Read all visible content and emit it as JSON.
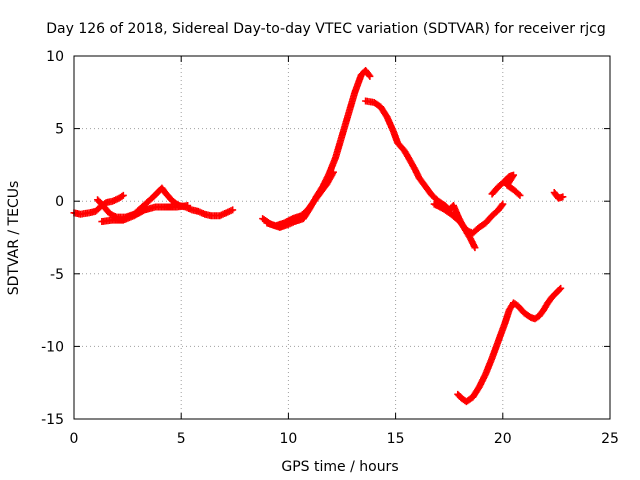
{
  "chart_data": {
    "type": "scatter",
    "title": "Day 126 of 2018, Sidereal Day-to-day VTEC variation (SDTVAR) for receiver rjcg",
    "xlabel": "GPS time / hours",
    "ylabel": "SDTVAR / TECUs",
    "xlim": [
      0,
      25
    ],
    "ylim": [
      -15,
      10
    ],
    "xticks": [
      0,
      5,
      10,
      15,
      20,
      25
    ],
    "yticks": [
      -15,
      -10,
      -5,
      0,
      5,
      10
    ],
    "xtick_labels": [
      "0",
      "5",
      "10",
      "15",
      "20",
      "25"
    ],
    "ytick_labels": [
      "-15",
      "-10",
      "-5",
      "0",
      "5",
      "10"
    ],
    "grid": true,
    "marker": "plus",
    "series_color": "#ff0000",
    "series": [
      {
        "name": "segment-1",
        "points": [
          [
            0.0,
            -0.8
          ],
          [
            0.3,
            -0.9
          ],
          [
            0.7,
            -0.8
          ],
          [
            1.0,
            -0.7
          ],
          [
            1.3,
            -0.3
          ],
          [
            1.5,
            -0.1
          ],
          [
            1.8,
            0.0
          ],
          [
            2.1,
            0.2
          ],
          [
            2.3,
            0.4
          ]
        ]
      },
      {
        "name": "segment-2",
        "points": [
          [
            1.1,
            0.1
          ],
          [
            1.4,
            -0.4
          ],
          [
            1.7,
            -0.9
          ],
          [
            2.0,
            -1.1
          ],
          [
            2.4,
            -1.1
          ],
          [
            2.8,
            -0.9
          ],
          [
            3.1,
            -0.5
          ],
          [
            3.4,
            -0.1
          ],
          [
            3.7,
            0.3
          ],
          [
            3.9,
            0.6
          ],
          [
            4.1,
            0.9
          ],
          [
            4.3,
            0.5
          ],
          [
            4.6,
            0.0
          ],
          [
            4.9,
            -0.3
          ],
          [
            5.2,
            -0.4
          ],
          [
            5.5,
            -0.6
          ],
          [
            5.8,
            -0.7
          ],
          [
            6.1,
            -0.9
          ],
          [
            6.4,
            -1.0
          ],
          [
            6.8,
            -1.0
          ],
          [
            7.1,
            -0.8
          ],
          [
            7.4,
            -0.6
          ]
        ]
      },
      {
        "name": "segment-3",
        "points": [
          [
            1.3,
            -1.4
          ],
          [
            1.8,
            -1.3
          ],
          [
            2.3,
            -1.3
          ],
          [
            2.8,
            -1.0
          ],
          [
            3.3,
            -0.6
          ],
          [
            3.8,
            -0.4
          ],
          [
            4.3,
            -0.4
          ],
          [
            4.8,
            -0.4
          ],
          [
            5.3,
            -0.3
          ]
        ]
      },
      {
        "name": "segment-4",
        "points": [
          [
            8.8,
            -1.2
          ],
          [
            9.2,
            -1.6
          ],
          [
            9.6,
            -1.8
          ],
          [
            10.0,
            -1.6
          ],
          [
            10.3,
            -1.4
          ],
          [
            10.7,
            -1.2
          ],
          [
            11.0,
            -0.5
          ],
          [
            11.3,
            0.3
          ],
          [
            11.6,
            1.0
          ],
          [
            11.9,
            1.9
          ],
          [
            12.2,
            3.0
          ],
          [
            12.5,
            4.5
          ],
          [
            12.8,
            6.0
          ],
          [
            13.1,
            7.5
          ],
          [
            13.4,
            8.7
          ],
          [
            13.6,
            9.0
          ],
          [
            13.8,
            8.6
          ]
        ]
      },
      {
        "name": "segment-5",
        "points": [
          [
            9.0,
            -1.5
          ],
          [
            9.4,
            -1.7
          ],
          [
            9.8,
            -1.5
          ],
          [
            10.2,
            -1.2
          ],
          [
            10.6,
            -1.0
          ],
          [
            10.9,
            -0.6
          ],
          [
            11.2,
            0.0
          ],
          [
            11.5,
            0.6
          ],
          [
            11.8,
            1.2
          ],
          [
            12.1,
            2.0
          ]
        ]
      },
      {
        "name": "segment-6",
        "points": [
          [
            13.6,
            6.9
          ],
          [
            14.0,
            6.8
          ],
          [
            14.3,
            6.5
          ],
          [
            14.6,
            5.8
          ],
          [
            14.9,
            4.8
          ],
          [
            15.1,
            4.0
          ],
          [
            15.4,
            3.5
          ],
          [
            15.6,
            3.0
          ],
          [
            15.9,
            2.2
          ],
          [
            16.1,
            1.6
          ],
          [
            16.4,
            1.0
          ],
          [
            16.7,
            0.4
          ],
          [
            17.0,
            0.0
          ],
          [
            17.3,
            -0.3
          ],
          [
            17.5,
            -0.6
          ],
          [
            17.7,
            -0.3
          ],
          [
            17.9,
            -1.0
          ],
          [
            18.1,
            -1.6
          ],
          [
            18.3,
            -2.1
          ],
          [
            18.5,
            -2.6
          ],
          [
            18.7,
            -3.2
          ]
        ]
      },
      {
        "name": "segment-7",
        "points": [
          [
            16.8,
            -0.2
          ],
          [
            17.2,
            -0.5
          ],
          [
            17.6,
            -0.9
          ],
          [
            18.0,
            -1.4
          ],
          [
            18.3,
            -2.0
          ],
          [
            18.6,
            -2.2
          ],
          [
            18.9,
            -1.8
          ],
          [
            19.2,
            -1.5
          ],
          [
            19.5,
            -1.0
          ],
          [
            19.8,
            -0.6
          ],
          [
            20.0,
            -0.2
          ]
        ]
      },
      {
        "name": "segment-8",
        "points": [
          [
            19.5,
            0.5
          ],
          [
            19.8,
            1.0
          ],
          [
            20.1,
            1.4
          ],
          [
            20.3,
            1.7
          ],
          [
            20.5,
            1.8
          ],
          [
            20.2,
            1.1
          ],
          [
            20.5,
            0.8
          ],
          [
            20.8,
            0.4
          ]
        ]
      },
      {
        "name": "segment-9",
        "points": [
          [
            22.4,
            0.6
          ],
          [
            22.6,
            0.2
          ],
          [
            22.8,
            0.3
          ]
        ]
      },
      {
        "name": "segment-10",
        "points": [
          [
            17.9,
            -13.3
          ],
          [
            18.1,
            -13.6
          ],
          [
            18.3,
            -13.8
          ],
          [
            18.6,
            -13.5
          ],
          [
            18.9,
            -12.8
          ],
          [
            19.2,
            -11.9
          ],
          [
            19.5,
            -10.8
          ],
          [
            19.8,
            -9.6
          ],
          [
            20.1,
            -8.4
          ],
          [
            20.3,
            -7.5
          ],
          [
            20.5,
            -7.0
          ],
          [
            20.7,
            -7.2
          ],
          [
            21.0,
            -7.7
          ],
          [
            21.3,
            -8.0
          ],
          [
            21.5,
            -8.1
          ],
          [
            21.7,
            -7.9
          ],
          [
            21.9,
            -7.5
          ],
          [
            22.1,
            -7.0
          ],
          [
            22.3,
            -6.6
          ],
          [
            22.5,
            -6.3
          ],
          [
            22.7,
            -6.0
          ]
        ]
      }
    ]
  }
}
